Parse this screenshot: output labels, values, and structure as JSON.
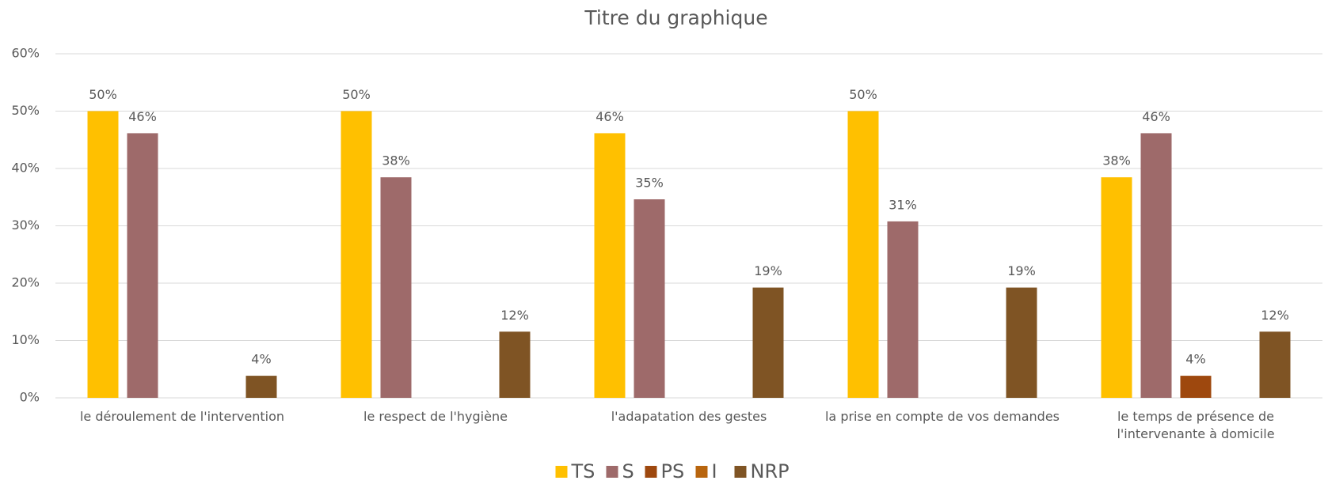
{
  "chart_data": {
    "type": "bar",
    "title": "Titre du graphique",
    "categories": [
      "le déroulement de l'intervention",
      "le respect de l'hygiène",
      "l'adapatation des gestes",
      "la prise en compte de vos demandes",
      "le temps de présence de l'intervenante à domicile"
    ],
    "series": [
      {
        "name": "TS",
        "color": "#ffc000",
        "values": [
          50,
          50,
          46.15,
          50,
          38.46
        ],
        "value_labels": [
          "50%",
          "50%",
          "46%",
          "50%",
          "38%"
        ]
      },
      {
        "name": "S",
        "color": "#9e6a6a",
        "values": [
          46.15,
          38.46,
          34.62,
          30.77,
          46.15
        ],
        "value_labels": [
          "46%",
          "38%",
          "35%",
          "31%",
          "46%"
        ]
      },
      {
        "name": "PS",
        "color": "#9e480e",
        "values": [
          null,
          null,
          null,
          null,
          3.85
        ],
        "value_labels": [
          null,
          null,
          null,
          null,
          "4%"
        ]
      },
      {
        "name": "I",
        "color": "#b8650e",
        "values": [
          null,
          null,
          null,
          null,
          null
        ],
        "value_labels": [
          null,
          null,
          null,
          null,
          null
        ]
      },
      {
        "name": "NRP",
        "color": "#7f5424",
        "values": [
          3.85,
          11.54,
          19.23,
          19.23,
          11.54
        ],
        "value_labels": [
          "4%",
          "12%",
          "19%",
          "19%",
          "12%"
        ]
      }
    ],
    "ylim": [
      0,
      60
    ],
    "yticks": [
      {
        "value": 0,
        "label": "0%"
      },
      {
        "value": 10,
        "label": "10%"
      },
      {
        "value": 20,
        "label": "20%"
      },
      {
        "value": 30,
        "label": "30%"
      },
      {
        "value": 40,
        "label": "40%"
      },
      {
        "value": 50,
        "label": "50%"
      },
      {
        "value": 60,
        "label": "60%"
      }
    ],
    "grid": true,
    "legend": "bottom"
  }
}
